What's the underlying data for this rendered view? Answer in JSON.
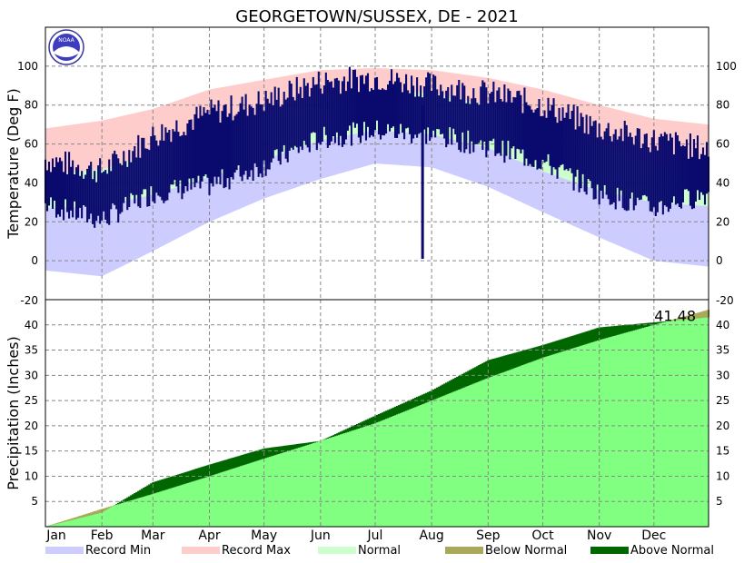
{
  "title": "GEORGETOWN/SUSSEX, DE - 2021",
  "logo_text": "NOAA",
  "colors": {
    "record_min": "#ccccff",
    "record_max": "#ffcccc",
    "normal": "#ccffcc",
    "observed_temp": "#0a0a6e",
    "normal_precip": "#80ff80",
    "below_normal": "#aaa85a",
    "above_normal": "#006600"
  },
  "legend": [
    {
      "label": "Record Min",
      "color": "#ccccff"
    },
    {
      "label": "Record Max",
      "color": "#ffcccc"
    },
    {
      "label": "Normal",
      "color": "#ccffcc"
    },
    {
      "label": "Below Normal",
      "color": "#aaa85a"
    },
    {
      "label": "Above Normal",
      "color": "#006600"
    }
  ],
  "chart_data": [
    {
      "type": "area",
      "name": "temperature",
      "ylabel": "Temperature (Deg F)",
      "ylim": [
        -20,
        120
      ],
      "yticks": [
        "100",
        "80",
        "60",
        "40",
        "20",
        "0",
        "-20"
      ],
      "grid": true,
      "months": [
        "Jan",
        "Feb",
        "Mar",
        "Apr",
        "May",
        "Jun",
        "Jul",
        "Aug",
        "Sep",
        "Oct",
        "Nov",
        "Dec"
      ],
      "x_day_of_year": [
        1,
        32,
        60,
        91,
        121,
        152,
        182,
        213,
        244,
        274,
        305,
        335,
        365
      ],
      "record_max": [
        68,
        72,
        78,
        88,
        93,
        98,
        99,
        98,
        94,
        88,
        80,
        73,
        70
      ],
      "record_min": [
        -5,
        -8,
        5,
        20,
        32,
        42,
        50,
        48,
        38,
        25,
        12,
        0,
        -3
      ],
      "normal_high": [
        44,
        47,
        55,
        66,
        75,
        84,
        88,
        86,
        80,
        70,
        59,
        49,
        45
      ],
      "normal_low": [
        27,
        28,
        34,
        43,
        52,
        62,
        67,
        65,
        58,
        46,
        36,
        30,
        28
      ],
      "observed_high": [
        50,
        44,
        62,
        74,
        80,
        90,
        92,
        88,
        84,
        78,
        66,
        60,
        55
      ],
      "observed_low": [
        30,
        22,
        36,
        40,
        50,
        64,
        68,
        66,
        60,
        52,
        36,
        28,
        36
      ],
      "anomaly": {
        "day": 208,
        "low": 1,
        "high": 80
      }
    },
    {
      "type": "area",
      "name": "precipitation",
      "ylabel": "Precipitation (Inches)",
      "ylim": [
        0,
        45
      ],
      "yticks": [
        "40",
        "35",
        "30",
        "25",
        "20",
        "15",
        "10",
        "5"
      ],
      "grid": true,
      "months": [
        "Jan",
        "Feb",
        "Mar",
        "Apr",
        "May",
        "Jun",
        "Jul",
        "Aug",
        "Sep",
        "Oct",
        "Nov",
        "Dec"
      ],
      "x_day_of_year": [
        1,
        32,
        60,
        91,
        121,
        152,
        182,
        213,
        244,
        274,
        305,
        335,
        365
      ],
      "normal_cumulative": [
        0.0,
        3.5,
        6.5,
        10.0,
        13.5,
        17.0,
        20.5,
        25.0,
        29.5,
        33.5,
        37.0,
        40.0,
        43.0
      ],
      "observed_cumulative": [
        0.0,
        2.8,
        8.8,
        12.3,
        15.5,
        17.0,
        22.0,
        27.0,
        33.0,
        36.0,
        39.5,
        40.5,
        41.48
      ],
      "total_label": "41.48"
    }
  ]
}
